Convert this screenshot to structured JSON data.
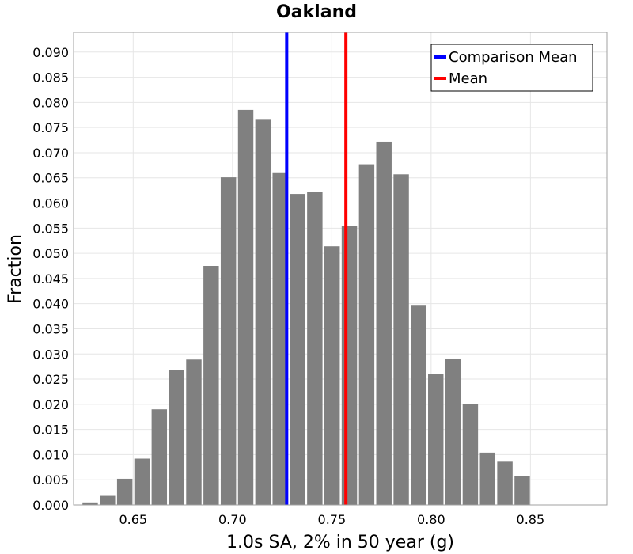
{
  "chart_data": {
    "type": "bar",
    "title": "Oakland",
    "xlabel": "1.0s SA, 2% in 50 year (g)",
    "ylabel": "Fraction",
    "xlim": [
      0.62,
      0.8885
    ],
    "ylim": [
      0.0,
      0.0939
    ],
    "x_ticks": [
      "0.65",
      "0.70",
      "0.75",
      "0.80",
      "0.85"
    ],
    "y_ticks": [
      "0.000",
      "0.005",
      "0.010",
      "0.015",
      "0.020",
      "0.025",
      "0.030",
      "0.035",
      "0.040",
      "0.045",
      "0.050",
      "0.055",
      "0.060",
      "0.065",
      "0.070",
      "0.075",
      "0.080",
      "0.085",
      "0.090"
    ],
    "grid": true,
    "bin_width": 0.0087,
    "bins": [
      {
        "x": 0.624,
        "y": 0.0005
      },
      {
        "x": 0.6327,
        "y": 0.0018
      },
      {
        "x": 0.6414,
        "y": 0.0052
      },
      {
        "x": 0.6501,
        "y": 0.0092
      },
      {
        "x": 0.6588,
        "y": 0.019
      },
      {
        "x": 0.6675,
        "y": 0.0268
      },
      {
        "x": 0.6762,
        "y": 0.0289
      },
      {
        "x": 0.6849,
        "y": 0.0475
      },
      {
        "x": 0.6936,
        "y": 0.0651
      },
      {
        "x": 0.7023,
        "y": 0.0785
      },
      {
        "x": 0.711,
        "y": 0.0767
      },
      {
        "x": 0.7197,
        "y": 0.0661
      },
      {
        "x": 0.7284,
        "y": 0.0618
      },
      {
        "x": 0.7371,
        "y": 0.0622
      },
      {
        "x": 0.7458,
        "y": 0.0514
      },
      {
        "x": 0.7545,
        "y": 0.0555
      },
      {
        "x": 0.7632,
        "y": 0.0677
      },
      {
        "x": 0.7719,
        "y": 0.0722
      },
      {
        "x": 0.7806,
        "y": 0.0657
      },
      {
        "x": 0.7893,
        "y": 0.0396
      },
      {
        "x": 0.798,
        "y": 0.026
      },
      {
        "x": 0.8067,
        "y": 0.0291
      },
      {
        "x": 0.8154,
        "y": 0.0201
      },
      {
        "x": 0.8241,
        "y": 0.0104
      },
      {
        "x": 0.8328,
        "y": 0.0086
      },
      {
        "x": 0.8415,
        "y": 0.0057
      }
    ],
    "bar_color": "#808080",
    "vlines": [
      {
        "name": "Comparison Mean",
        "x": 0.7273,
        "color": "#0000ff"
      },
      {
        "name": "Mean",
        "x": 0.7571,
        "color": "#ff0000"
      }
    ],
    "legend": {
      "placement": "top-right",
      "entries": [
        {
          "label": "Comparison Mean",
          "color": "#0000ff"
        },
        {
          "label": "Mean",
          "color": "#ff0000"
        }
      ]
    }
  }
}
